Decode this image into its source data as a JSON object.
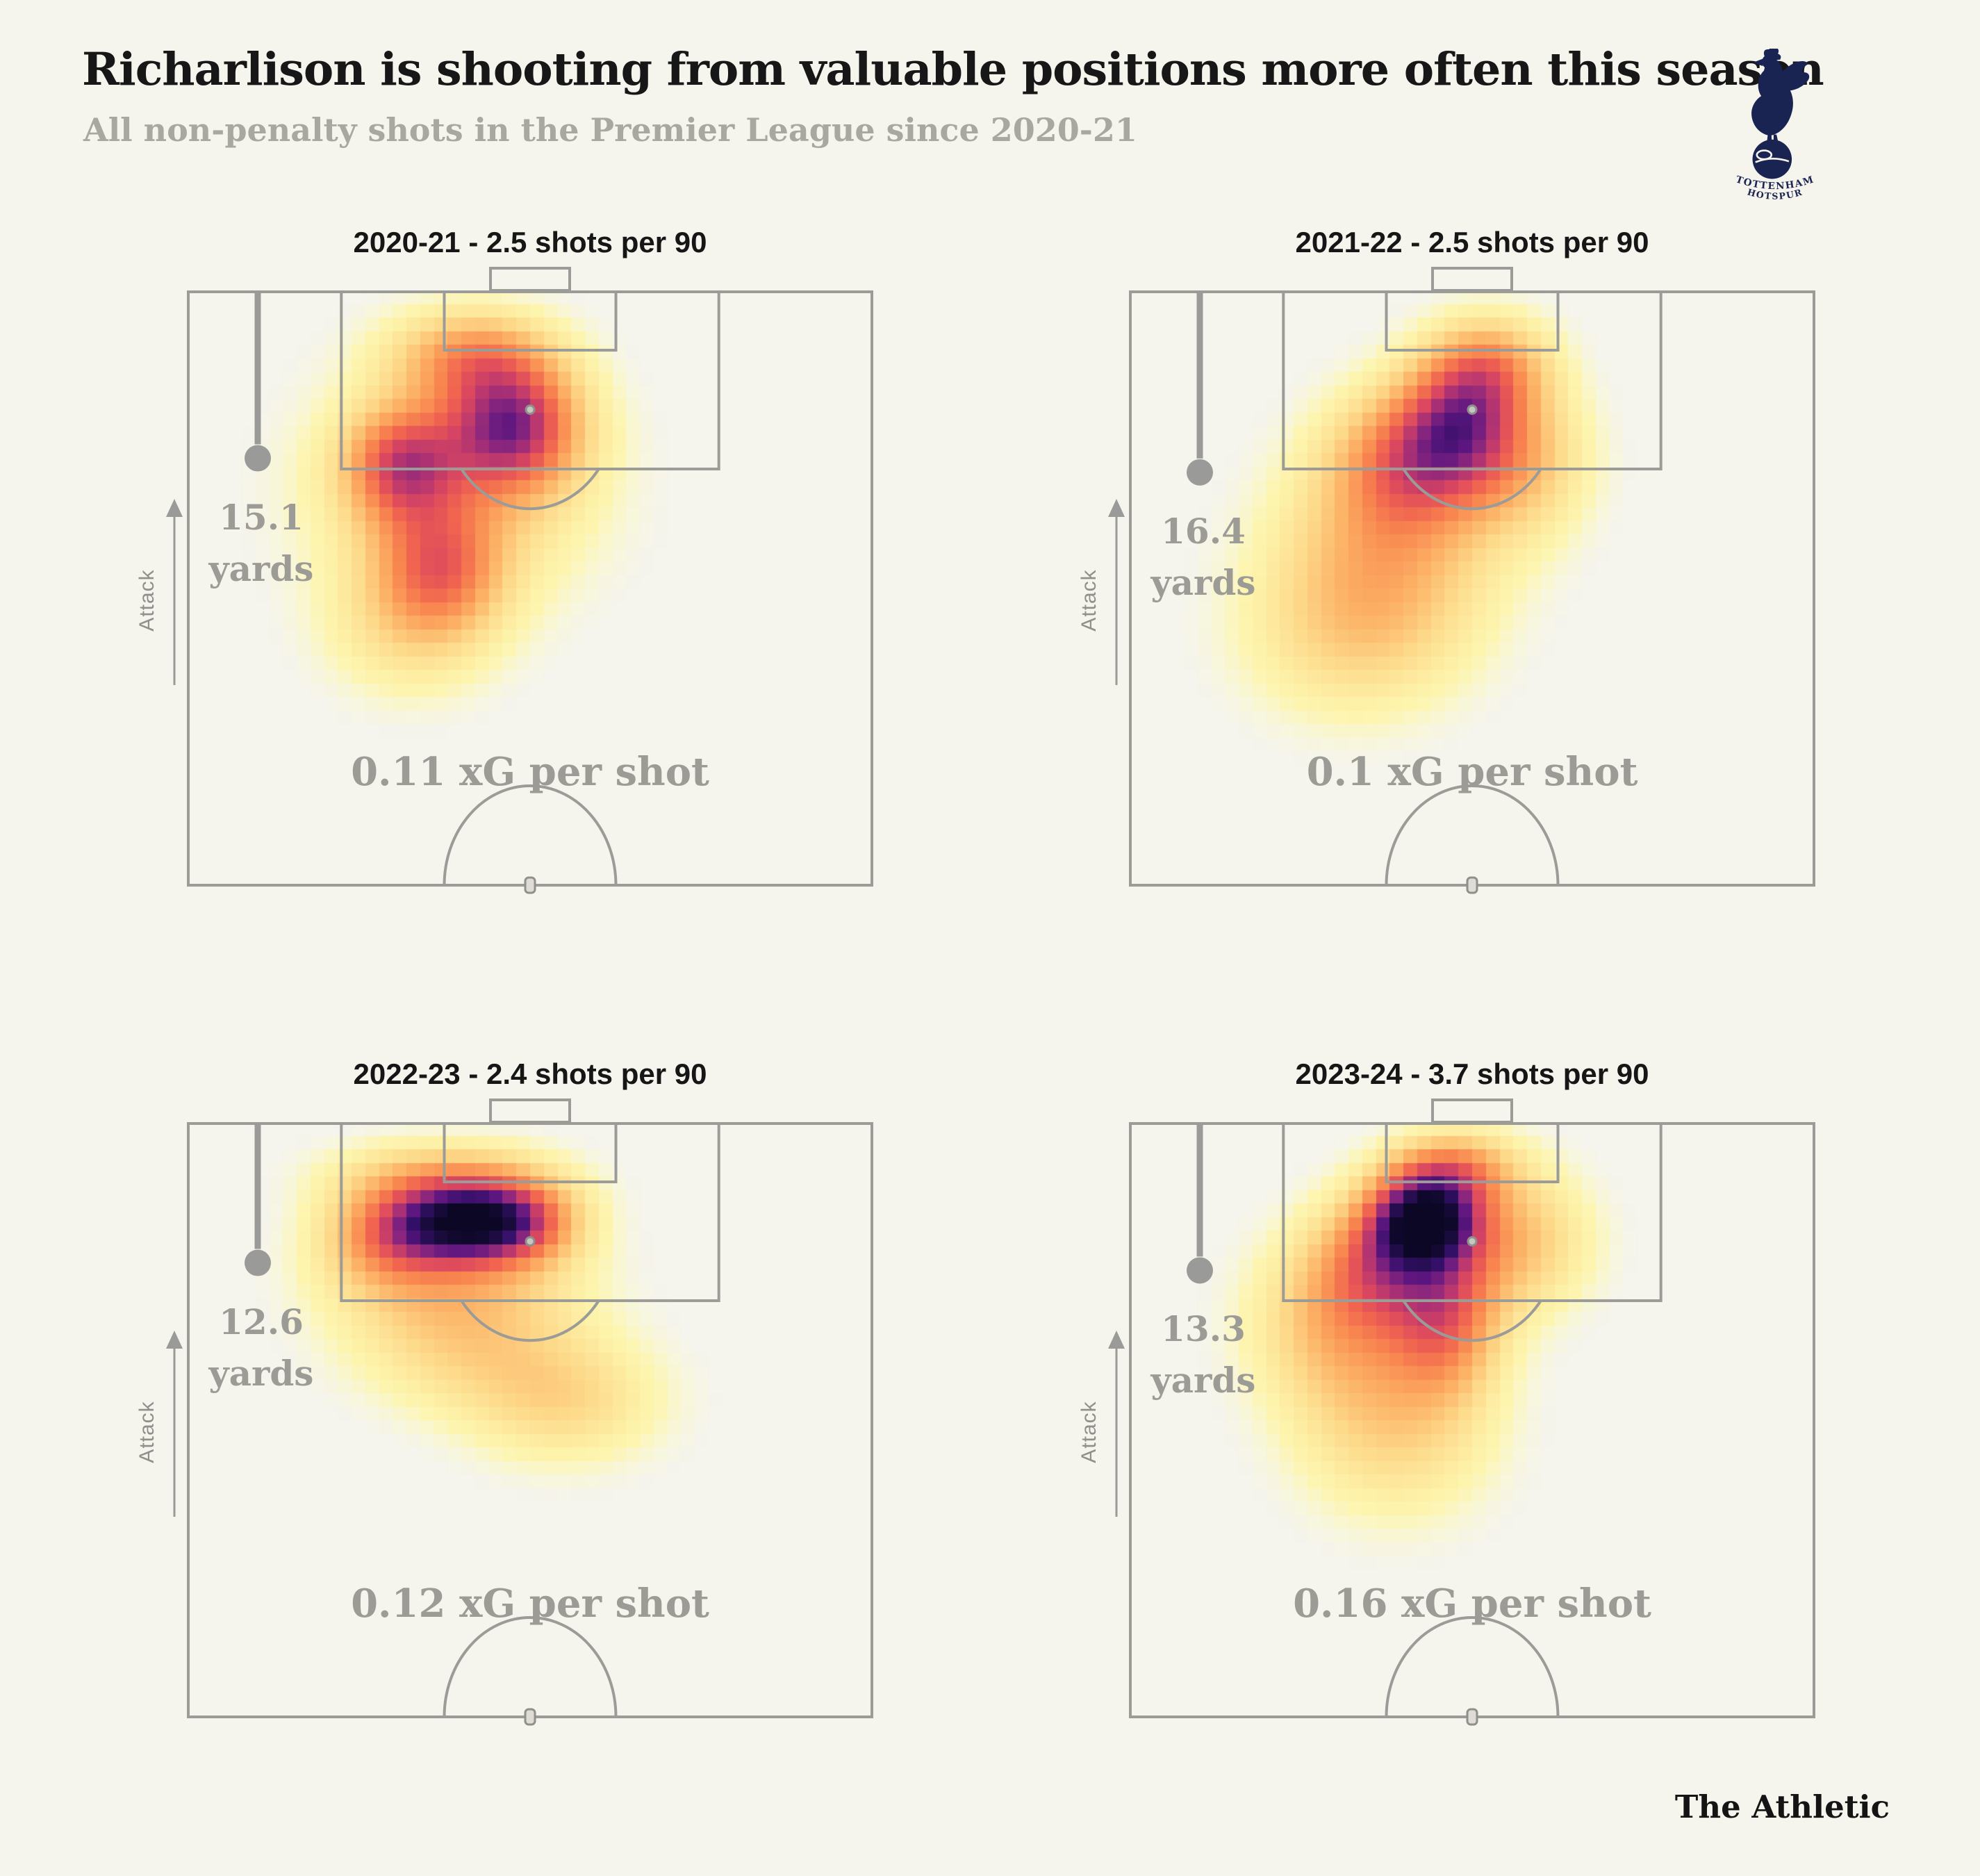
{
  "page": {
    "background": "#f5f4ed"
  },
  "header": {
    "title": "Richarlison is shooting from valuable positions more often this season",
    "subtitle": "All non-penalty shots in the Premier League since 2020-21"
  },
  "badge": {
    "club": "Tottenham Hotspur",
    "line1": "TOTTENHAM",
    "line2": "HOTSPUR",
    "navy": "#1a2452"
  },
  "footer": {
    "brand": "The Athletic"
  },
  "pitch": {
    "attack_label": "Attack",
    "line_color": "#9b9b98",
    "marker_color": "#9a9a99",
    "text_gray": "#9c9b96"
  },
  "chart_data": {
    "type": "heatmap",
    "title": "Richarlison is shooting from valuable positions more often this season",
    "subtitle": "All non-penalty shots in the Premier League since 2020-21",
    "layout": "2x2 grid of vertical half-pitch shot heatmaps, one per season",
    "coordinates": "pitch yards: x 0-80 across attacking half (goal centre at x=40), y 0-60 from goal line down to halfway line",
    "colormap": "magma_r",
    "colormap_stops": [
      [
        0,
        "#fcfdc9"
      ],
      [
        0.14,
        "#fdf2a9"
      ],
      [
        0.28,
        "#fdd98a"
      ],
      [
        0.42,
        "#fcb165"
      ],
      [
        0.55,
        "#f8864f"
      ],
      [
        0.65,
        "#ef6150"
      ],
      [
        0.74,
        "#d94660"
      ],
      [
        0.82,
        "#b13372"
      ],
      [
        0.89,
        "#86257e"
      ],
      [
        0.95,
        "#5c167f"
      ],
      [
        1.02,
        "#331067"
      ],
      [
        1.1,
        "#1d0c42"
      ],
      [
        1.18,
        "#0b0724"
      ]
    ],
    "panels": [
      {
        "season": "2020-21",
        "shots_per_90": 2.5,
        "title": "2020-21 - 2.5 shots per 90",
        "avg_shot_distance_yards": 15.1,
        "distance_value": "15.1",
        "distance_unit": "yards",
        "xg_per_shot": 0.11,
        "xg_label": "0.11 xG per shot",
        "density_kernels": [
          {
            "x": 38,
            "y": 13.5,
            "amp": 0.72,
            "sx": 5.5,
            "sy": 4.5
          },
          {
            "x": 25,
            "y": 17.5,
            "amp": 0.52,
            "sx": 4.5,
            "sy": 4
          },
          {
            "x": 29.5,
            "y": 28,
            "amp": 0.42,
            "sx": 5,
            "sy": 4.5
          },
          {
            "x": 33,
            "y": 6.5,
            "amp": 0.4,
            "sx": 6.5,
            "sy": 3.2
          },
          {
            "x": 31,
            "y": 20,
            "amp": 0.32,
            "sx": 11,
            "sy": 8
          },
          {
            "x": 26,
            "y": 34,
            "amp": 0.2,
            "sx": 7,
            "sy": 5
          }
        ]
      },
      {
        "season": "2021-22",
        "shots_per_90": 2.5,
        "title": "2021-22 - 2.5 shots per 90",
        "avg_shot_distance_yards": 16.4,
        "distance_value": "16.4",
        "distance_unit": "yards",
        "xg_per_shot": 0.1,
        "xg_label": "0.1 xG per shot",
        "density_kernels": [
          {
            "x": 38.5,
            "y": 13,
            "amp": 0.5,
            "sx": 5,
            "sy": 4.5
          },
          {
            "x": 33,
            "y": 17,
            "amp": 0.5,
            "sx": 6.5,
            "sy": 5
          },
          {
            "x": 42,
            "y": 7.5,
            "amp": 0.4,
            "sx": 5,
            "sy": 3.5
          },
          {
            "x": 30,
            "y": 26,
            "amp": 0.35,
            "sx": 9,
            "sy": 7
          },
          {
            "x": 26,
            "y": 35,
            "amp": 0.22,
            "sx": 9,
            "sy": 6
          },
          {
            "x": 46,
            "y": 17,
            "amp": 0.3,
            "sx": 5.5,
            "sy": 5.5
          }
        ]
      },
      {
        "season": "2022-23",
        "shots_per_90": 2.4,
        "title": "2022-23 - 2.4 shots per 90",
        "avg_shot_distance_yards": 12.6,
        "distance_value": "12.6",
        "distance_unit": "yards",
        "xg_per_shot": 0.12,
        "xg_label": "0.12 xG per shot",
        "density_kernels": [
          {
            "x": 32.5,
            "y": 10,
            "amp": 0.85,
            "sx": 6.5,
            "sy": 2.9
          },
          {
            "x": 23.5,
            "y": 11.5,
            "amp": 0.35,
            "sx": 5.5,
            "sy": 3.5
          },
          {
            "x": 39,
            "y": 10,
            "amp": 0.35,
            "sx": 5,
            "sy": 3
          },
          {
            "x": 31,
            "y": 16,
            "amp": 0.3,
            "sx": 10,
            "sy": 4.5
          },
          {
            "x": 30,
            "y": 5.5,
            "amp": 0.3,
            "sx": 9,
            "sy": 2.6
          },
          {
            "x": 44,
            "y": 28,
            "amp": 0.26,
            "sx": 8,
            "sy": 4.5
          },
          {
            "x": 32,
            "y": 23,
            "amp": 0.2,
            "sx": 9,
            "sy": 4.5
          }
        ]
      },
      {
        "season": "2023-24",
        "shots_per_90": 3.7,
        "title": "2023-24 - 3.7 shots per 90",
        "avg_shot_distance_yards": 13.3,
        "distance_value": "13.3",
        "distance_unit": "yards",
        "xg_per_shot": 0.16,
        "xg_label": "0.16 xG per shot",
        "density_kernels": [
          {
            "x": 34.5,
            "y": 9.5,
            "amp": 0.95,
            "sx": 4.5,
            "sy": 3.3
          },
          {
            "x": 29.5,
            "y": 14,
            "amp": 0.45,
            "sx": 5.5,
            "sy": 4.5
          },
          {
            "x": 37,
            "y": 19.5,
            "amp": 0.5,
            "sx": 4.5,
            "sy": 5.5
          },
          {
            "x": 38,
            "y": 4.5,
            "amp": 0.4,
            "sx": 5,
            "sy": 2.6
          },
          {
            "x": 24.5,
            "y": 20,
            "amp": 0.35,
            "sx": 7,
            "sy": 6
          },
          {
            "x": 31,
            "y": 30.5,
            "amp": 0.28,
            "sx": 8,
            "sy": 6.5
          },
          {
            "x": 45,
            "y": 12,
            "amp": 0.35,
            "sx": 6,
            "sy": 5
          }
        ]
      }
    ]
  }
}
